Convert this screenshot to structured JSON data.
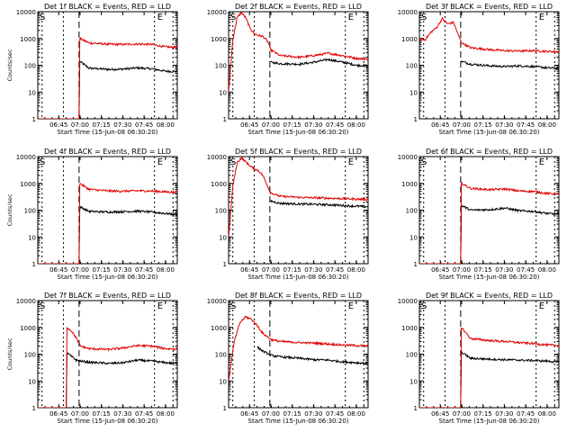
{
  "colors": {
    "events": "#000000",
    "lld": "#e00000",
    "axis": "#000000"
  },
  "shared": {
    "ylabel": "Counts/sec",
    "xlabel": "Start Time (15-Jun-08 06:30:20)",
    "x_tick_labels": [
      "06:45",
      "07:00",
      "07:15",
      "07:30",
      "07:45",
      "08:00"
    ],
    "y_tick_labels": [
      "1",
      "10",
      "100",
      "1000",
      "10000"
    ],
    "marker_start": "S",
    "marker_end": "E",
    "x_range_minutes_after_start": [
      0,
      98
    ],
    "y_range": [
      1,
      10000
    ],
    "y_scale": "log"
  },
  "chart_data": [
    {
      "type": "line",
      "title": "Det 1f BLACK = Events, RED = LLD",
      "series": [
        {
          "name": "Events",
          "x": [
            0,
            29,
            29.5,
            36,
            50,
            60,
            70,
            80,
            90,
            98
          ],
          "values": [
            1,
            1,
            140,
            78,
            70,
            72,
            80,
            74,
            60,
            58
          ]
        },
        {
          "name": "LLD",
          "x": [
            0,
            29,
            29.5,
            36,
            50,
            60,
            70,
            80,
            90,
            98
          ],
          "values": [
            1,
            1,
            1000,
            680,
            610,
            600,
            620,
            600,
            480,
            470
          ]
        }
      ]
    },
    {
      "type": "line",
      "title": "Det 2f BLACK = Events, RED = LLD",
      "series": [
        {
          "name": "Events",
          "x": [
            29.5,
            36,
            50,
            60,
            70,
            80,
            90,
            98
          ],
          "values": [
            130,
            115,
            110,
            130,
            165,
            130,
            100,
            95
          ]
        },
        {
          "name": "LLD",
          "x": [
            0,
            3,
            6,
            9,
            12,
            15,
            18,
            21,
            24,
            26,
            28,
            29.5,
            36,
            50,
            60,
            70,
            80,
            90,
            98
          ],
          "values": [
            10,
            900,
            6000,
            9500,
            6000,
            2500,
            1500,
            1300,
            1200,
            950,
            700,
            380,
            230,
            200,
            230,
            280,
            230,
            180,
            170
          ]
        }
      ]
    },
    {
      "type": "line",
      "title": "Det 3f BLACK = Events, RED = LLD",
      "series": [
        {
          "name": "Events",
          "x": [
            29.5,
            36,
            50,
            60,
            70,
            80,
            90,
            98
          ],
          "values": [
            140,
            110,
            95,
            90,
            95,
            90,
            80,
            75
          ]
        },
        {
          "name": "LLD",
          "x": [
            0,
            4,
            8,
            12,
            16,
            20,
            24,
            27,
            29.5,
            36,
            50,
            60,
            70,
            80,
            90,
            98
          ],
          "values": [
            900,
            900,
            1700,
            2500,
            5500,
            3500,
            4000,
            1500,
            700,
            450,
            380,
            350,
            340,
            350,
            330,
            320
          ]
        }
      ]
    },
    {
      "type": "line",
      "title": "Det 4f BLACK = Events, RED = LLD",
      "series": [
        {
          "name": "Events",
          "x": [
            0,
            29,
            29.5,
            36,
            50,
            60,
            70,
            80,
            90,
            98
          ],
          "values": [
            1,
            1,
            135,
            90,
            85,
            88,
            92,
            85,
            75,
            68
          ]
        },
        {
          "name": "LLD",
          "x": [
            0,
            29,
            29.5,
            36,
            50,
            60,
            70,
            80,
            90,
            98
          ],
          "values": [
            1,
            1,
            1000,
            600,
            520,
            510,
            530,
            520,
            480,
            470
          ]
        }
      ]
    },
    {
      "type": "line",
      "title": "Det 5f BLACK = Events, RED = LLD",
      "series": [
        {
          "name": "Events",
          "x": [
            29.5,
            36,
            50,
            60,
            70,
            80,
            90,
            98
          ],
          "values": [
            220,
            180,
            170,
            165,
            160,
            150,
            140,
            135
          ]
        },
        {
          "name": "LLD",
          "x": [
            0,
            3,
            6,
            9,
            12,
            15,
            18,
            21,
            24,
            27,
            29.5,
            36,
            50,
            60,
            70,
            80,
            90,
            98
          ],
          "values": [
            10,
            800,
            6000,
            9000,
            6500,
            4500,
            3500,
            3000,
            2000,
            900,
            450,
            330,
            300,
            290,
            280,
            270,
            260,
            250
          ]
        }
      ]
    },
    {
      "type": "line",
      "title": "Det 6f BLACK = Events, RED = LLD",
      "series": [
        {
          "name": "Events",
          "x": [
            0,
            29,
            29.5,
            36,
            50,
            60,
            70,
            80,
            90,
            98
          ],
          "values": [
            1,
            1,
            150,
            100,
            105,
            120,
            95,
            90,
            75,
            70
          ]
        },
        {
          "name": "LLD",
          "x": [
            0,
            29,
            29.5,
            36,
            50,
            60,
            70,
            80,
            90,
            98
          ],
          "values": [
            1,
            1,
            1000,
            650,
            580,
            620,
            520,
            500,
            420,
            400
          ]
        }
      ]
    },
    {
      "type": "line",
      "title": "Det 7f BLACK = Events, RED = LLD",
      "series": [
        {
          "name": "Events",
          "x": [
            0,
            20,
            20.5,
            24,
            27,
            30,
            36,
            50,
            60,
            70,
            80,
            90,
            98
          ],
          "values": [
            1,
            1,
            110,
            80,
            60,
            55,
            50,
            45,
            48,
            60,
            55,
            48,
            45
          ]
        },
        {
          "name": "LLD",
          "x": [
            0,
            20,
            20.5,
            24,
            27,
            30,
            36,
            50,
            60,
            70,
            80,
            90,
            98
          ],
          "values": [
            1,
            1,
            1000,
            700,
            400,
            200,
            160,
            150,
            170,
            210,
            200,
            160,
            155
          ]
        }
      ]
    },
    {
      "type": "line",
      "title": "Det 8f BLACK = Events, RED = LLD",
      "series": [
        {
          "name": "Events",
          "x": [
            20.5,
            24,
            30,
            36,
            50,
            60,
            70,
            80,
            90,
            98
          ],
          "values": [
            180,
            130,
            90,
            80,
            70,
            62,
            60,
            52,
            48,
            45
          ]
        },
        {
          "name": "LLD",
          "x": [
            0,
            4,
            8,
            12,
            16,
            20,
            24,
            30,
            36,
            50,
            60,
            70,
            80,
            90,
            98
          ],
          "values": [
            10,
            300,
            1500,
            2500,
            2000,
            1200,
            600,
            350,
            300,
            270,
            260,
            240,
            220,
            210,
            200
          ]
        }
      ]
    },
    {
      "type": "line",
      "title": "Det 9f BLACK = Events, RED = LLD",
      "series": [
        {
          "name": "Events",
          "x": [
            0,
            29,
            29.5,
            36,
            50,
            60,
            70,
            80,
            90,
            98
          ],
          "values": [
            1,
            1,
            120,
            70,
            65,
            62,
            60,
            58,
            55,
            50
          ]
        },
        {
          "name": "LLD",
          "x": [
            0,
            29,
            29.5,
            36,
            50,
            60,
            70,
            80,
            90,
            98
          ],
          "values": [
            1,
            1,
            1000,
            380,
            320,
            300,
            270,
            250,
            220,
            210
          ]
        }
      ]
    }
  ]
}
